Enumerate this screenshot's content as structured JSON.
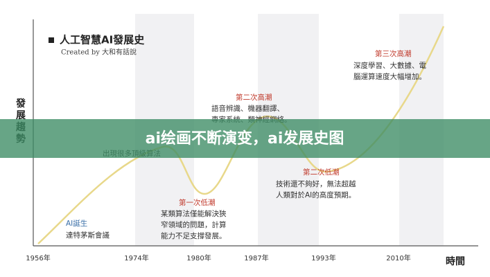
{
  "header": {
    "title": "人工智慧AI發展史",
    "subtitle": "Created by 大和有話說"
  },
  "axes": {
    "y_label": "發展趨勢",
    "x_label": "時間",
    "years": [
      "1956年",
      "1974年",
      "1980年",
      "1987年",
      "1993年",
      "2010年"
    ]
  },
  "annotations": [
    {
      "heading": "AI誕生",
      "lines": [
        "達特茅斯會議"
      ]
    },
    {
      "heading": "出現很多頂級算法",
      "lines": []
    },
    {
      "heading": "第一次低潮",
      "lines": [
        "某類算法僅能解決狹",
        "窄領域的問題，計算",
        "能力不足支撐發展。"
      ]
    },
    {
      "heading": "第二次高潮",
      "lines": [
        "語音辨識、機器翻譯、",
        "專家系統、類神經網絡。"
      ]
    },
    {
      "heading": "第二次低潮",
      "lines": [
        "技術還不夠好，無法超越",
        "人類對於AI的高度預期。"
      ]
    },
    {
      "heading": "第三次高潮",
      "lines": [
        "深度學習、大數據、電",
        "腦運算速度大幅增加。"
      ]
    }
  ],
  "banner": "ai绘画不断演变，ai发展史图"
}
